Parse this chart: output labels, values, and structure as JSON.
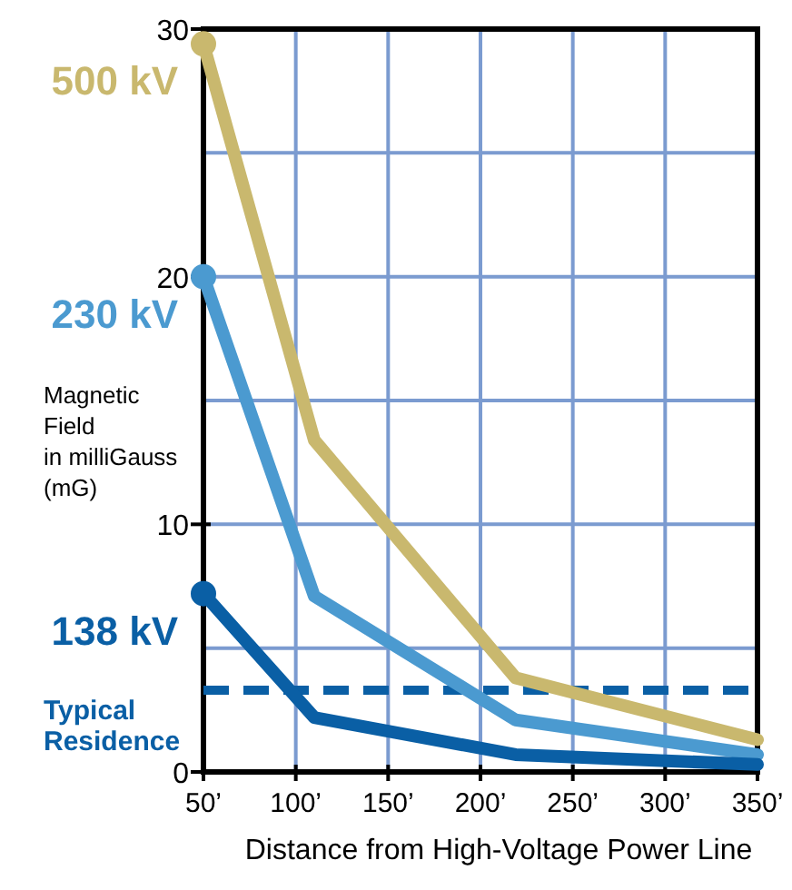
{
  "chart_data": {
    "type": "line",
    "xlabel": "Distance from High-Voltage Power Line",
    "ylabel": "Magnetic\nField\nin milliGauss\n(mG)",
    "x": [
      50,
      110,
      219,
      350
    ],
    "xlim": [
      50,
      350
    ],
    "xticks": [
      {
        "value": 50,
        "label": "50’"
      },
      {
        "value": 100,
        "label": "100’"
      },
      {
        "value": 150,
        "label": "150’"
      },
      {
        "value": 200,
        "label": "200’"
      },
      {
        "value": 250,
        "label": "250’"
      },
      {
        "value": 300,
        "label": "300’"
      },
      {
        "value": 350,
        "label": "350’"
      }
    ],
    "ylim": [
      0,
      30
    ],
    "yticks": [
      0,
      {
        "value": 5,
        "label": null
      },
      10,
      {
        "value": 15,
        "label": null
      },
      20,
      {
        "value": 25,
        "label": null
      },
      30
    ],
    "grid": true,
    "line_style": "solid",
    "series": [
      {
        "name": "500 kV",
        "color": "#c9b86e",
        "values": [
          29.4,
          13.4,
          3.8,
          1.3
        ]
      },
      {
        "name": "230 kV",
        "color": "#4b9ad0",
        "values": [
          20,
          7.1,
          2.1,
          0.7
        ]
      },
      {
        "name": "138 kV",
        "color": "#0a5fa5",
        "values": [
          7.2,
          2.2,
          0.7,
          0.3
        ]
      }
    ],
    "ref_lines": [
      {
        "axis": "y",
        "value": 3.3,
        "label": "Typical\nResidence",
        "color": "#0a5fa5",
        "line_style": "dashed"
      }
    ]
  }
}
